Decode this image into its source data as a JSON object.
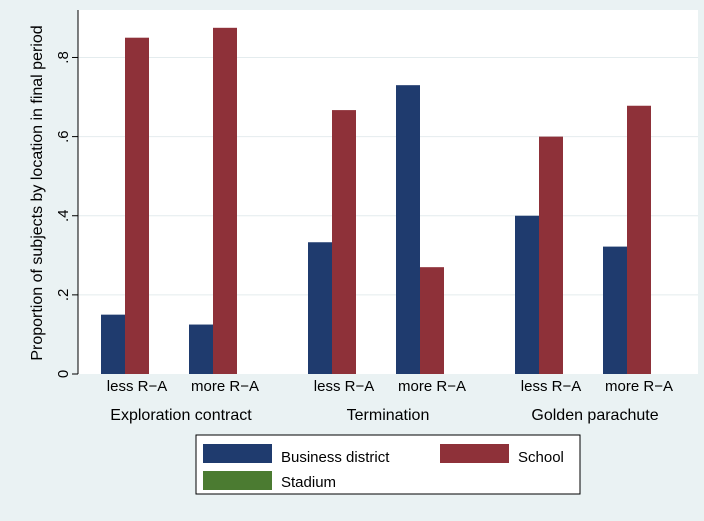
{
  "chart_data": {
    "type": "bar",
    "ylabel": "Proportion of subjects by location in final period",
    "ylim": [
      0,
      0.92
    ],
    "yticks": [
      0,
      0.2,
      0.4,
      0.6,
      0.8
    ],
    "ytick_labels": [
      "0",
      ".2",
      ".4",
      ".6",
      ".8"
    ],
    "grid": true,
    "legend_position": "bottom",
    "groups": [
      {
        "label": "Exploration contract",
        "categories": [
          "less R−A",
          "more R−A"
        ]
      },
      {
        "label": "Termination",
        "categories": [
          "less R−A",
          "more R−A"
        ]
      },
      {
        "label": "Golden parachute",
        "categories": [
          "less R−A",
          "more R−A"
        ]
      }
    ],
    "series": [
      {
        "name": "Business district",
        "color": "#1f3b6e",
        "values": [
          0.15,
          0.125,
          0.333,
          0.73,
          0.4,
          0.322
        ]
      },
      {
        "name": "School",
        "color": "#8e3139",
        "values": [
          0.85,
          0.875,
          0.667,
          0.27,
          0.6,
          0.678
        ]
      },
      {
        "name": "Stadium",
        "color": "#4b7b31",
        "values": [
          0,
          0,
          0,
          0,
          0,
          0
        ]
      }
    ]
  }
}
